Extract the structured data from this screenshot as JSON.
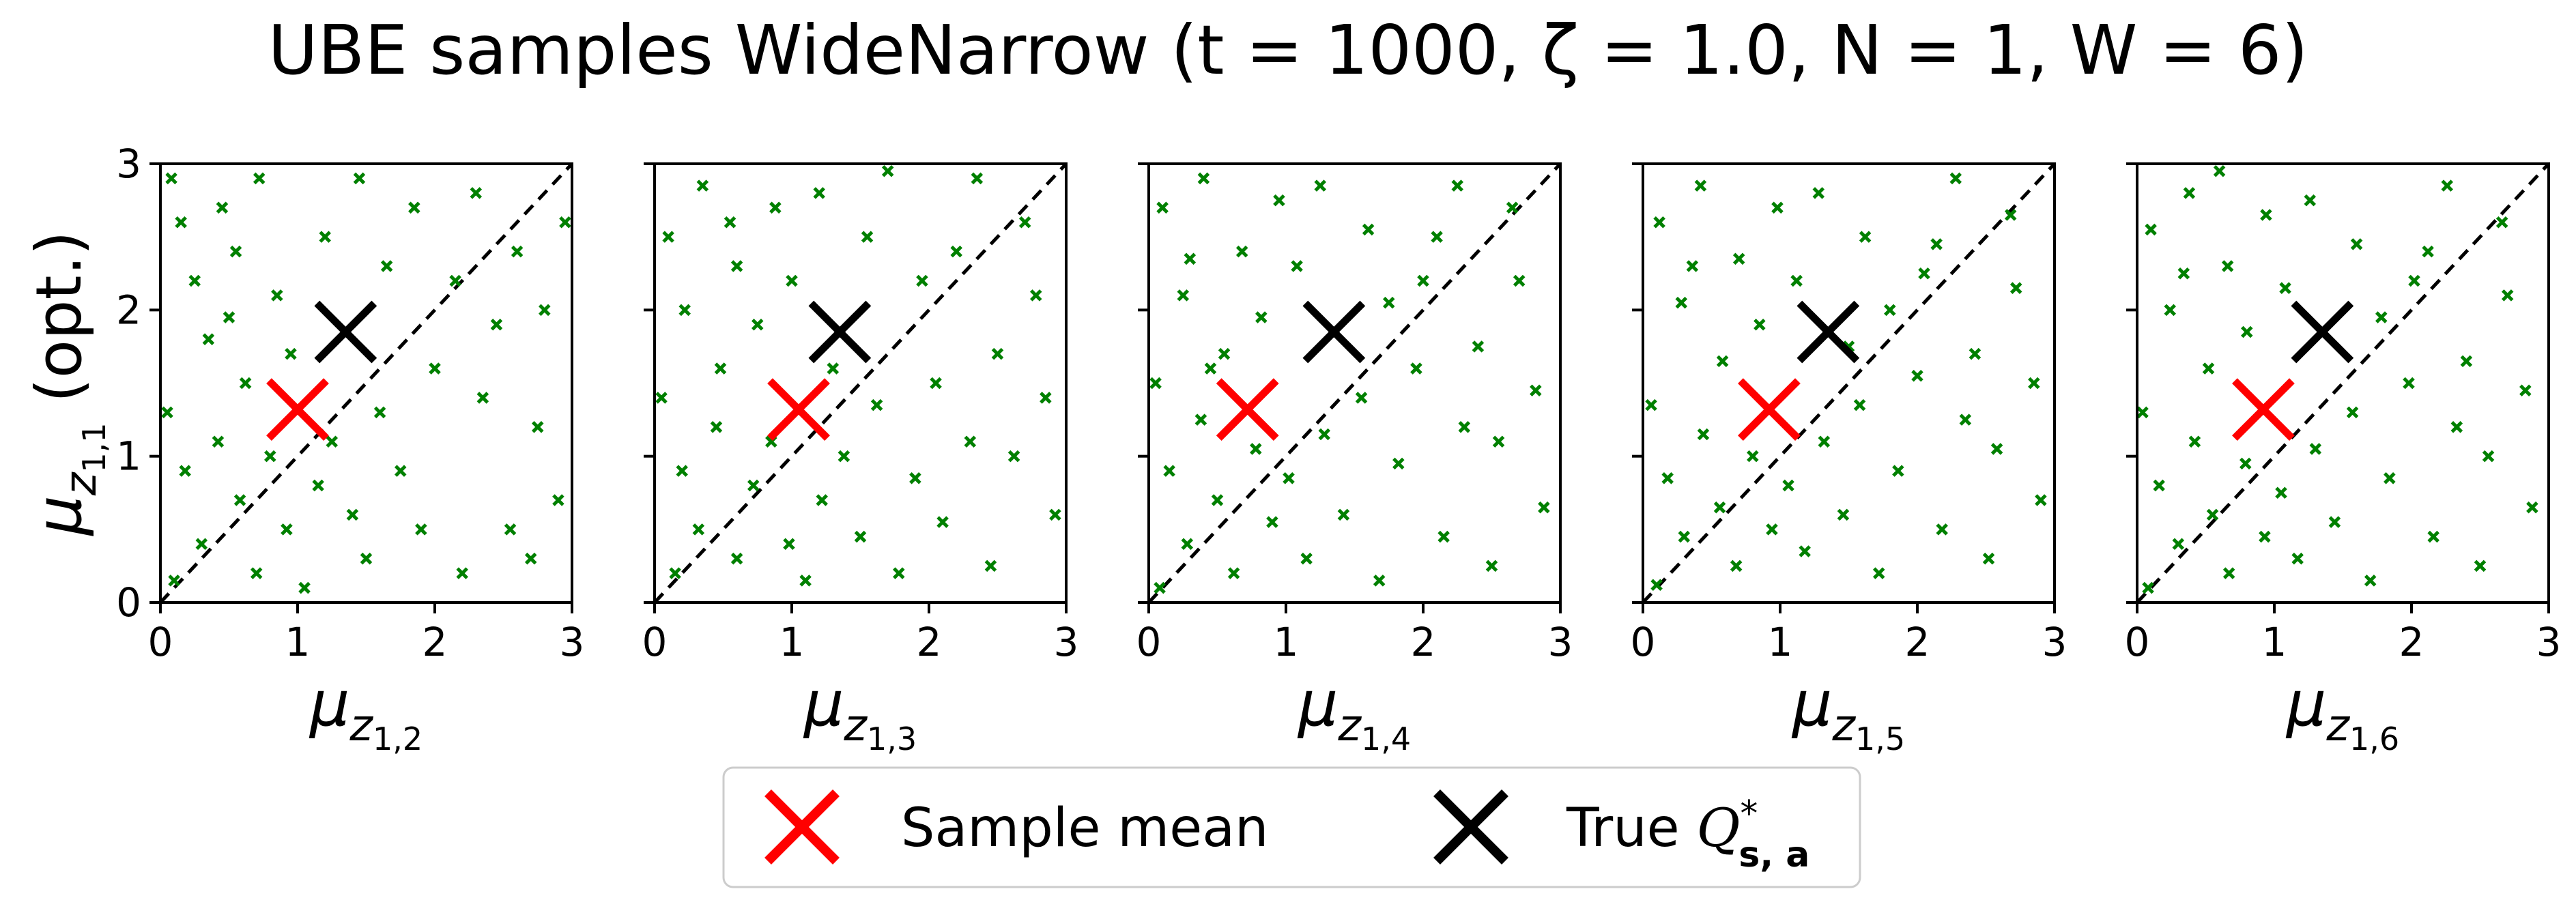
{
  "title": "UBE samples WideNarrow (t = 1000, ζ = 1.0, N = 1, W = 6)",
  "colors": {
    "samples": "#008000",
    "sample_mean": "#ff0000",
    "true_q": "#000000",
    "diagonal": "#000000"
  },
  "legend": {
    "items": [
      {
        "label": "Sample mean",
        "color": "#ff0000"
      },
      {
        "label": "True Q*s,a",
        "color": "#000000"
      }
    ]
  },
  "chart_data": [
    {
      "type": "scatter",
      "xlabel": "μz1,2",
      "ylabel": "μz1,1 (opt.)",
      "xlim": [
        0,
        3
      ],
      "ylim": [
        0,
        3
      ],
      "xticks": [
        0,
        1,
        2,
        3
      ],
      "yticks": [
        0,
        1,
        2,
        3
      ],
      "sample_mean": [
        1.0,
        1.32
      ],
      "true_q": [
        1.35,
        1.85
      ],
      "samples": [
        [
          0.08,
          2.9
        ],
        [
          0.15,
          2.6
        ],
        [
          0.25,
          2.2
        ],
        [
          0.35,
          1.8
        ],
        [
          0.45,
          2.7
        ],
        [
          0.55,
          2.4
        ],
        [
          0.62,
          1.5
        ],
        [
          0.72,
          2.9
        ],
        [
          0.85,
          2.1
        ],
        [
          0.95,
          1.7
        ],
        [
          0.05,
          1.3
        ],
        [
          0.18,
          0.9
        ],
        [
          0.3,
          0.4
        ],
        [
          0.42,
          1.1
        ],
        [
          0.58,
          0.7
        ],
        [
          0.7,
          0.2
        ],
        [
          0.8,
          1.0
        ],
        [
          0.92,
          0.5
        ],
        [
          1.05,
          0.1
        ],
        [
          1.15,
          0.8
        ],
        [
          1.25,
          1.1
        ],
        [
          1.4,
          0.6
        ],
        [
          1.5,
          0.3
        ],
        [
          1.6,
          1.3
        ],
        [
          1.75,
          0.9
        ],
        [
          1.9,
          0.5
        ],
        [
          2.0,
          1.6
        ],
        [
          2.15,
          2.2
        ],
        [
          2.3,
          2.8
        ],
        [
          2.45,
          1.9
        ],
        [
          2.6,
          2.4
        ],
        [
          2.75,
          1.2
        ],
        [
          2.9,
          0.7
        ],
        [
          2.95,
          2.6
        ],
        [
          1.2,
          2.5
        ],
        [
          1.45,
          2.9
        ],
        [
          1.65,
          2.3
        ],
        [
          2.2,
          0.2
        ],
        [
          2.55,
          0.5
        ],
        [
          2.8,
          2.0
        ],
        [
          0.5,
          1.95
        ],
        [
          1.85,
          2.7
        ],
        [
          2.35,
          1.4
        ],
        [
          0.1,
          0.15
        ],
        [
          2.7,
          0.3
        ]
      ]
    },
    {
      "type": "scatter",
      "xlabel": "μz1,3",
      "ylabel": "",
      "xlim": [
        0,
        3
      ],
      "ylim": [
        0,
        3
      ],
      "xticks": [
        0,
        1,
        2,
        3
      ],
      "yticks": [
        0,
        1,
        2,
        3
      ],
      "sample_mean": [
        1.05,
        1.32
      ],
      "true_q": [
        1.35,
        1.85
      ],
      "samples": [
        [
          0.1,
          2.5
        ],
        [
          0.22,
          2.0
        ],
        [
          0.35,
          2.85
        ],
        [
          0.48,
          1.6
        ],
        [
          0.6,
          2.3
        ],
        [
          0.75,
          1.9
        ],
        [
          0.88,
          2.7
        ],
        [
          1.0,
          2.2
        ],
        [
          0.05,
          1.4
        ],
        [
          0.2,
          0.9
        ],
        [
          0.32,
          0.5
        ],
        [
          0.45,
          1.2
        ],
        [
          0.6,
          0.3
        ],
        [
          0.72,
          0.8
        ],
        [
          0.85,
          1.1
        ],
        [
          0.98,
          0.4
        ],
        [
          1.1,
          0.15
        ],
        [
          1.22,
          0.7
        ],
        [
          1.38,
          1.0
        ],
        [
          1.5,
          0.45
        ],
        [
          1.62,
          1.35
        ],
        [
          1.78,
          0.2
        ],
        [
          1.9,
          0.85
        ],
        [
          2.05,
          1.5
        ],
        [
          2.2,
          2.4
        ],
        [
          2.35,
          2.9
        ],
        [
          2.5,
          1.7
        ],
        [
          2.62,
          1.0
        ],
        [
          2.78,
          2.1
        ],
        [
          2.92,
          0.6
        ],
        [
          1.2,
          2.8
        ],
        [
          1.55,
          2.5
        ],
        [
          1.7,
          2.95
        ],
        [
          2.1,
          0.55
        ],
        [
          2.45,
          0.25
        ],
        [
          2.85,
          1.4
        ],
        [
          0.55,
          2.6
        ],
        [
          1.95,
          2.2
        ],
        [
          2.7,
          2.6
        ],
        [
          0.15,
          0.2
        ],
        [
          2.3,
          1.1
        ],
        [
          1.3,
          1.6
        ]
      ]
    },
    {
      "type": "scatter",
      "xlabel": "μz1,4",
      "ylabel": "",
      "xlim": [
        0,
        3
      ],
      "ylim": [
        0,
        3
      ],
      "xticks": [
        0,
        1,
        2,
        3
      ],
      "yticks": [
        0,
        1,
        2,
        3
      ],
      "sample_mean": [
        0.72,
        1.32
      ],
      "true_q": [
        1.35,
        1.85
      ],
      "samples": [
        [
          0.1,
          2.7
        ],
        [
          0.25,
          2.1
        ],
        [
          0.4,
          2.9
        ],
        [
          0.55,
          1.7
        ],
        [
          0.68,
          2.4
        ],
        [
          0.82,
          1.95
        ],
        [
          0.95,
          2.75
        ],
        [
          1.08,
          2.3
        ],
        [
          0.05,
          1.5
        ],
        [
          0.15,
          0.9
        ],
        [
          0.28,
          0.4
        ],
        [
          0.38,
          1.25
        ],
        [
          0.5,
          0.7
        ],
        [
          0.62,
          0.2
        ],
        [
          0.78,
          1.05
        ],
        [
          0.9,
          0.55
        ],
        [
          1.02,
          0.85
        ],
        [
          1.15,
          0.3
        ],
        [
          1.28,
          1.15
        ],
        [
          1.42,
          0.6
        ],
        [
          1.55,
          1.4
        ],
        [
          1.68,
          0.15
        ],
        [
          1.82,
          0.95
        ],
        [
          1.95,
          1.6
        ],
        [
          2.1,
          2.5
        ],
        [
          2.25,
          2.85
        ],
        [
          2.4,
          1.75
        ],
        [
          2.55,
          1.1
        ],
        [
          2.7,
          2.2
        ],
        [
          2.88,
          0.65
        ],
        [
          1.25,
          2.85
        ],
        [
          1.6,
          2.55
        ],
        [
          1.75,
          2.05
        ],
        [
          2.15,
          0.45
        ],
        [
          2.5,
          0.25
        ],
        [
          2.82,
          1.45
        ],
        [
          0.3,
          2.35
        ],
        [
          2.0,
          2.2
        ],
        [
          2.65,
          2.7
        ],
        [
          0.08,
          0.1
        ],
        [
          2.3,
          1.2
        ],
        [
          0.45,
          1.6
        ]
      ]
    },
    {
      "type": "scatter",
      "xlabel": "μz1,5",
      "ylabel": "",
      "xlim": [
        0,
        3
      ],
      "ylim": [
        0,
        3
      ],
      "xticks": [
        0,
        1,
        2,
        3
      ],
      "yticks": [
        0,
        1,
        2,
        3
      ],
      "sample_mean": [
        0.92,
        1.32
      ],
      "true_q": [
        1.35,
        1.85
      ],
      "samples": [
        [
          0.12,
          2.6
        ],
        [
          0.28,
          2.05
        ],
        [
          0.42,
          2.85
        ],
        [
          0.58,
          1.65
        ],
        [
          0.7,
          2.35
        ],
        [
          0.85,
          1.9
        ],
        [
          0.98,
          2.7
        ],
        [
          1.12,
          2.2
        ],
        [
          0.06,
          1.35
        ],
        [
          0.18,
          0.85
        ],
        [
          0.3,
          0.45
        ],
        [
          0.44,
          1.15
        ],
        [
          0.56,
          0.65
        ],
        [
          0.68,
          0.25
        ],
        [
          0.8,
          1.0
        ],
        [
          0.94,
          0.5
        ],
        [
          1.06,
          0.8
        ],
        [
          1.18,
          0.35
        ],
        [
          1.32,
          1.1
        ],
        [
          1.46,
          0.6
        ],
        [
          1.58,
          1.35
        ],
        [
          1.72,
          0.2
        ],
        [
          1.86,
          0.9
        ],
        [
          2.0,
          1.55
        ],
        [
          2.14,
          2.45
        ],
        [
          2.28,
          2.9
        ],
        [
          2.42,
          1.7
        ],
        [
          2.58,
          1.05
        ],
        [
          2.72,
          2.15
        ],
        [
          2.9,
          0.7
        ],
        [
          1.28,
          2.8
        ],
        [
          1.62,
          2.5
        ],
        [
          1.8,
          2.0
        ],
        [
          2.18,
          0.5
        ],
        [
          2.52,
          0.3
        ],
        [
          2.85,
          1.5
        ],
        [
          0.36,
          2.3
        ],
        [
          2.05,
          2.25
        ],
        [
          2.68,
          2.65
        ],
        [
          0.1,
          0.12
        ],
        [
          2.35,
          1.25
        ],
        [
          1.5,
          1.75
        ]
      ]
    },
    {
      "type": "scatter",
      "xlabel": "μz1,6",
      "ylabel": "",
      "xlim": [
        0,
        3
      ],
      "ylim": [
        0,
        3
      ],
      "xticks": [
        0,
        1,
        2,
        3
      ],
      "yticks": [
        0,
        1,
        2,
        3
      ],
      "sample_mean": [
        0.92,
        1.32
      ],
      "true_q": [
        1.35,
        1.85
      ],
      "samples": [
        [
          0.1,
          2.55
        ],
        [
          0.24,
          2.0
        ],
        [
          0.38,
          2.8
        ],
        [
          0.52,
          1.6
        ],
        [
          0.66,
          2.3
        ],
        [
          0.8,
          1.85
        ],
        [
          0.94,
          2.65
        ],
        [
          1.08,
          2.15
        ],
        [
          0.04,
          1.3
        ],
        [
          0.16,
          0.8
        ],
        [
          0.3,
          0.4
        ],
        [
          0.42,
          1.1
        ],
        [
          0.55,
          0.6
        ],
        [
          0.67,
          0.2
        ],
        [
          0.79,
          0.95
        ],
        [
          0.93,
          0.45
        ],
        [
          1.05,
          0.75
        ],
        [
          1.17,
          0.3
        ],
        [
          1.3,
          1.05
        ],
        [
          1.44,
          0.55
        ],
        [
          1.57,
          1.3
        ],
        [
          1.7,
          0.15
        ],
        [
          1.84,
          0.85
        ],
        [
          1.98,
          1.5
        ],
        [
          2.12,
          2.4
        ],
        [
          2.26,
          2.85
        ],
        [
          2.4,
          1.65
        ],
        [
          2.56,
          1.0
        ],
        [
          2.7,
          2.1
        ],
        [
          2.88,
          0.65
        ],
        [
          1.26,
          2.75
        ],
        [
          1.6,
          2.45
        ],
        [
          1.78,
          1.95
        ],
        [
          2.16,
          0.45
        ],
        [
          2.5,
          0.25
        ],
        [
          2.83,
          1.45
        ],
        [
          0.34,
          2.25
        ],
        [
          2.02,
          2.2
        ],
        [
          2.66,
          2.6
        ],
        [
          0.08,
          0.1
        ],
        [
          2.33,
          1.2
        ],
        [
          0.6,
          2.95
        ]
      ]
    }
  ]
}
